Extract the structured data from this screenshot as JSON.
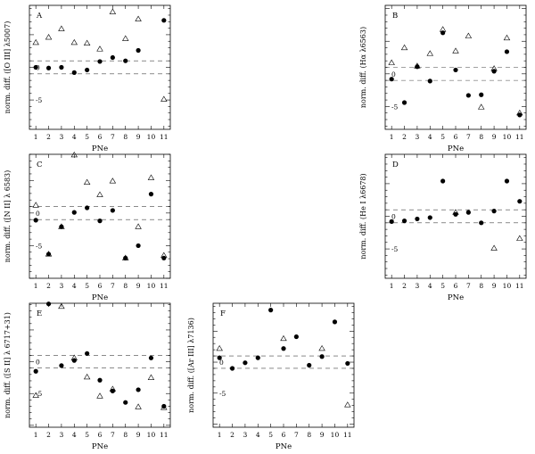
{
  "chart_data": [
    {
      "type": "scatter",
      "panel_letter": "A",
      "ylabel": "norm. diff. ([O III] λ5007)",
      "xlabel": "PNe",
      "x_ticks": [
        1,
        2,
        3,
        4,
        5,
        6,
        7,
        8,
        9,
        10,
        11
      ],
      "y_ticks": [
        0,
        -5
      ],
      "xlim": [
        0.5,
        11.5
      ],
      "ylim": [
        -9.5,
        9.5
      ],
      "reference_lines": [
        1,
        -1
      ],
      "series": [
        {
          "marker": "filled-circle",
          "x": [
            1,
            2,
            3,
            4,
            5,
            6,
            7,
            8,
            9,
            11
          ],
          "y": [
            0.0,
            -0.1,
            0.0,
            -0.8,
            -0.4,
            0.9,
            1.5,
            1.0,
            2.6,
            7.2
          ]
        },
        {
          "marker": "open-triangle",
          "x": [
            1,
            2,
            3,
            4,
            5,
            6,
            7,
            8,
            9,
            11
          ],
          "y": [
            3.8,
            4.6,
            5.9,
            3.8,
            3.7,
            2.8,
            8.5,
            4.4,
            7.4,
            -4.9
          ]
        }
      ]
    },
    {
      "type": "scatter",
      "panel_letter": "B",
      "ylabel": "norm. diff. (Hα λ6563)",
      "xlabel": "PNe",
      "x_ticks": [
        1,
        2,
        3,
        4,
        5,
        6,
        7,
        8,
        9,
        10,
        11
      ],
      "y_ticks": [
        0,
        -5
      ],
      "xlim": [
        0.5,
        11.5
      ],
      "ylim": [
        -8.5,
        10.5
      ],
      "reference_lines": [
        1,
        -1
      ],
      "series": [
        {
          "marker": "filled-circle",
          "x": [
            1,
            2,
            3,
            4,
            5,
            6,
            7,
            8,
            9,
            10,
            11
          ],
          "y": [
            -0.8,
            -4.4,
            1.1,
            -1.1,
            6.3,
            0.6,
            -3.3,
            -3.2,
            0.4,
            3.4,
            -6.3
          ]
        },
        {
          "marker": "open-triangle",
          "x": [
            1,
            2,
            3,
            4,
            5,
            6,
            7,
            8,
            9,
            10,
            11
          ],
          "y": [
            1.7,
            4.0,
            1.2,
            3.1,
            6.8,
            3.5,
            5.8,
            -5.1,
            0.8,
            5.5,
            -6.0
          ]
        }
      ]
    },
    {
      "type": "scatter",
      "panel_letter": "C",
      "ylabel": "norm. diff. ([N II] λ 6583)",
      "xlabel": "PNe",
      "x_ticks": [
        1,
        2,
        3,
        4,
        5,
        6,
        7,
        8,
        9,
        10,
        11
      ],
      "y_ticks": [
        0,
        -5
      ],
      "xlim": [
        0.5,
        11.5
      ],
      "ylim": [
        -10.0,
        9.0
      ],
      "reference_lines": [
        1,
        -1
      ],
      "series": [
        {
          "marker": "filled-circle",
          "x": [
            1,
            2,
            3,
            4,
            5,
            6,
            7,
            8,
            9,
            10,
            11
          ],
          "y": [
            -1.1,
            -6.3,
            -2.1,
            0.1,
            0.8,
            -1.2,
            0.4,
            -6.9,
            -5.0,
            2.9,
            -6.9
          ]
        },
        {
          "marker": "open-triangle",
          "x": [
            1,
            2,
            3,
            4,
            5,
            6,
            7,
            8,
            9,
            10,
            11
          ],
          "y": [
            1.2,
            -6.3,
            -2.1,
            8.9,
            4.7,
            2.8,
            4.9,
            -6.9,
            -2.1,
            5.4,
            -6.5
          ]
        }
      ]
    },
    {
      "type": "scatter",
      "panel_letter": "D",
      "ylabel": "norm. diff. (He I λ6678)",
      "xlabel": "PNe",
      "x_ticks": [
        1,
        2,
        3,
        4,
        5,
        6,
        7,
        8,
        9,
        10,
        11
      ],
      "y_ticks": [
        0,
        -5
      ],
      "xlim": [
        0.5,
        11.5
      ],
      "ylim": [
        -9.5,
        9.5
      ],
      "reference_lines": [
        1,
        -1
      ],
      "series": [
        {
          "marker": "filled-circle",
          "x": [
            1,
            2,
            3,
            4,
            5,
            6,
            7,
            8,
            9,
            10,
            11
          ],
          "y": [
            -0.8,
            -0.7,
            -0.4,
            -0.2,
            5.4,
            0.3,
            0.6,
            -1.0,
            0.8,
            5.4,
            2.3
          ]
        },
        {
          "marker": "open-triangle",
          "x": [
            6,
            9,
            11
          ],
          "y": [
            0.6,
            -4.9,
            -3.4
          ]
        }
      ]
    },
    {
      "type": "scatter",
      "panel_letter": "E",
      "ylabel": "norm. diff. ([S II] λ 6717+31)",
      "xlabel": "PNe",
      "x_ticks": [
        1,
        2,
        3,
        4,
        5,
        6,
        7,
        8,
        9,
        10,
        11
      ],
      "y_ticks": [
        0,
        -5
      ],
      "xlim": [
        0.5,
        11.5
      ],
      "ylim": [
        -10.3,
        9.2
      ],
      "reference_lines": [
        1,
        -1
      ],
      "series": [
        {
          "marker": "filled-circle",
          "x": [
            1,
            2,
            3,
            4,
            5,
            6,
            7,
            8,
            9,
            10,
            11
          ],
          "y": [
            -1.5,
            9.1,
            -0.6,
            0.2,
            1.3,
            -2.9,
            -4.6,
            -6.4,
            -4.4,
            0.6,
            -7.0
          ]
        },
        {
          "marker": "open-triangle",
          "x": [
            1,
            3,
            4,
            5,
            6,
            7,
            9,
            10,
            11
          ],
          "y": [
            -5.3,
            8.7,
            0.6,
            -2.4,
            -5.4,
            -4.3,
            -7.1,
            -2.5,
            -7.2
          ]
        }
      ]
    },
    {
      "type": "scatter",
      "panel_letter": "F",
      "ylabel": "norm. diff. ([Ar III] λ7136)",
      "xlabel": "PNe",
      "x_ticks": [
        1,
        2,
        3,
        4,
        5,
        6,
        7,
        8,
        9,
        10,
        11
      ],
      "y_ticks": [
        0,
        -5
      ],
      "xlim": [
        0.5,
        11.5
      ],
      "ylim": [
        -10.5,
        9.5
      ],
      "reference_lines": [
        1,
        -1
      ],
      "series": [
        {
          "marker": "filled-circle",
          "x": [
            1,
            2,
            3,
            4,
            5,
            6,
            7,
            8,
            9,
            10,
            11
          ],
          "y": [
            0.7,
            -1.0,
            -0.1,
            0.7,
            8.4,
            2.2,
            4.1,
            -0.5,
            0.9,
            6.5,
            -0.2
          ]
        },
        {
          "marker": "open-triangle",
          "x": [
            1,
            6,
            9,
            11
          ],
          "y": [
            2.2,
            3.8,
            2.2,
            -6.9
          ]
        }
      ]
    }
  ]
}
